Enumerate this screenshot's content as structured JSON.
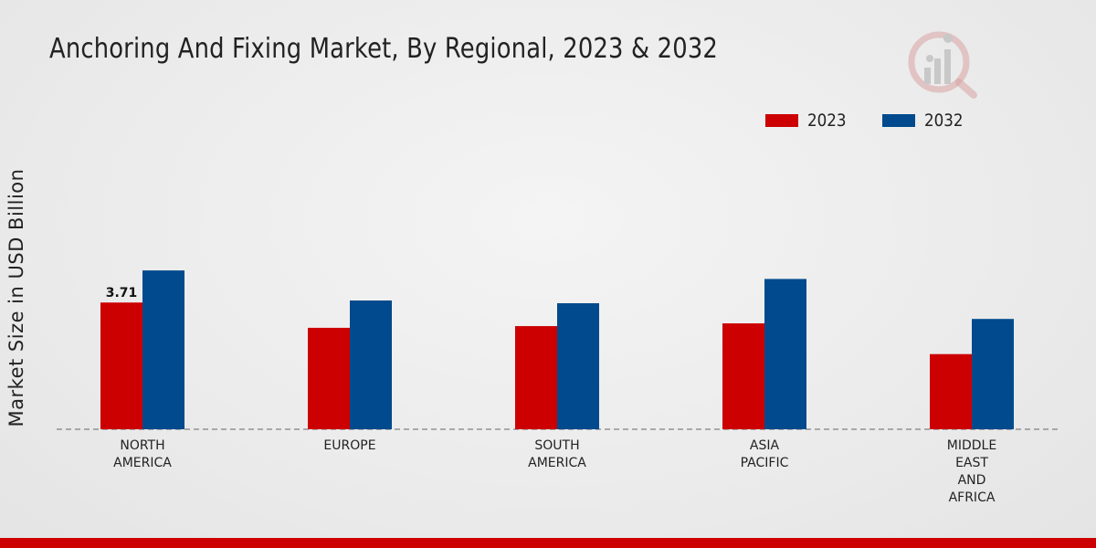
{
  "title": "Anchoring And Fixing Market, By Regional, 2023 & 2032",
  "chart_data": {
    "type": "bar",
    "title": "Anchoring And Fixing Market, By Regional, 2023 & 2032",
    "xlabel": "",
    "ylabel": "Market Size in USD Billion",
    "categories": [
      "NORTH\nAMERICA",
      "EUROPE",
      "SOUTH\nAMERICA",
      "ASIA\nPACIFIC",
      "MIDDLE\nEAST\nAND\nAFRICA"
    ],
    "series": [
      {
        "name": "2023",
        "color": "#cc0000",
        "values": [
          3.71,
          2.97,
          3.02,
          3.1,
          2.2
        ]
      },
      {
        "name": "2032",
        "color": "#004a8d",
        "values": [
          4.65,
          3.77,
          3.69,
          4.4,
          3.23
        ]
      }
    ],
    "data_labels": [
      {
        "series": "2023",
        "category_index": 0,
        "text": "3.71"
      }
    ],
    "ylim": [
      0,
      8
    ],
    "legend_position": "top-right",
    "grid": false
  }
}
